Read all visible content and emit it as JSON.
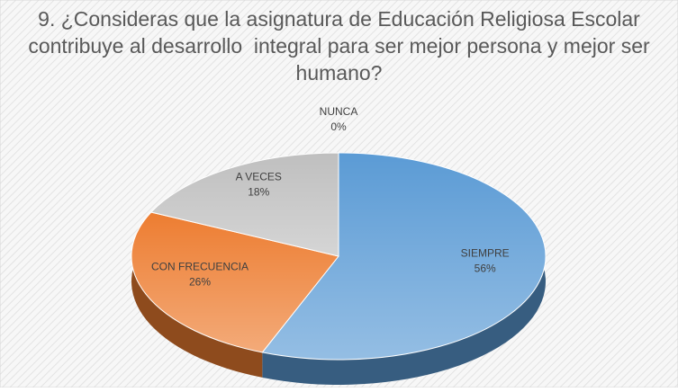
{
  "chart_data": {
    "type": "pie3d",
    "title": "9. ¿Consideras que la asignatura de Educación Religiosa Escolar contribuye al desarrollo  integral para ser mejor persona y mejor ser humano?",
    "categories": [
      "SIEMPRE",
      "CON FRECUENCIA",
      "A VECES",
      "NUNCA"
    ],
    "values": [
      56,
      26,
      18,
      0
    ],
    "value_labels": [
      "56%",
      "26%",
      "18%",
      "0%"
    ],
    "colors": [
      "#5b9bd5",
      "#ed7d31",
      "#bfbfbf",
      "#ffc000"
    ]
  }
}
